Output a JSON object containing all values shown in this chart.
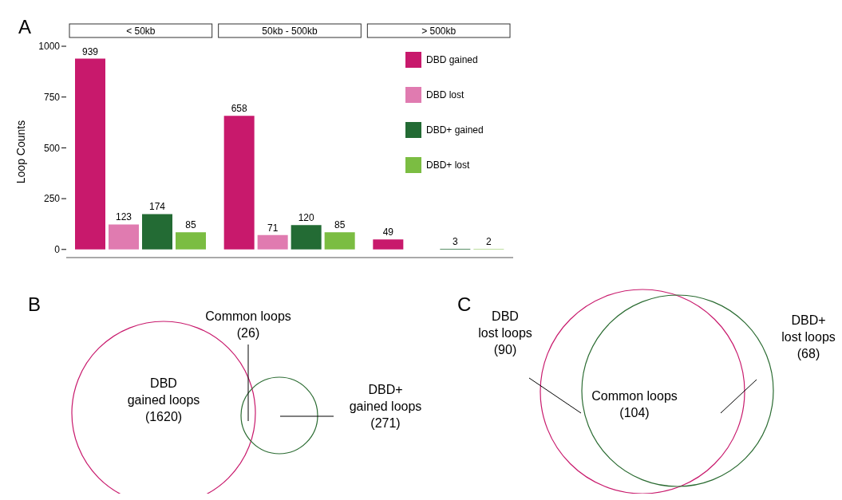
{
  "chart_data": [
    {
      "type": "bar",
      "annotations": [
        "A"
      ],
      "ylabel": "Loop Counts",
      "categories": [
        "< 50kb",
        "50kb - 500kb",
        "> 500kb"
      ],
      "ylim": [
        -40,
        1000
      ],
      "yticks": [
        0,
        250,
        500,
        750,
        1000
      ],
      "data_labels": true,
      "legend": "top right",
      "series": [
        {
          "name": "DBD gained",
          "color": "#c8196c",
          "values": [
            939,
            658,
            49
          ]
        },
        {
          "name": "DBD lost",
          "color": "#e07bb0",
          "values": [
            123,
            71,
            null
          ]
        },
        {
          "name": "DBD+ gained",
          "color": "#236b34",
          "values": [
            174,
            120,
            3
          ]
        },
        {
          "name": "DBD+ lost",
          "color": "#7bbd42",
          "values": [
            85,
            85,
            2
          ]
        }
      ]
    },
    {
      "type": "other",
      "title": "B",
      "colors": [
        "#c8196c",
        "#2a6b31"
      ],
      "annotations": [
        "Common loops\n(26)",
        "DBD\ngained loops\n(1620)",
        "DBD+\ngained loops\n(271)"
      ]
    },
    {
      "type": "other",
      "title": "C",
      "colors": [
        "#c8196c",
        "#2a6b31"
      ],
      "annotations": [
        "DBD\nlost loops\n(90)",
        "Common loops\n(104)",
        "DBD+\nlost loops\n(68)"
      ]
    }
  ]
}
